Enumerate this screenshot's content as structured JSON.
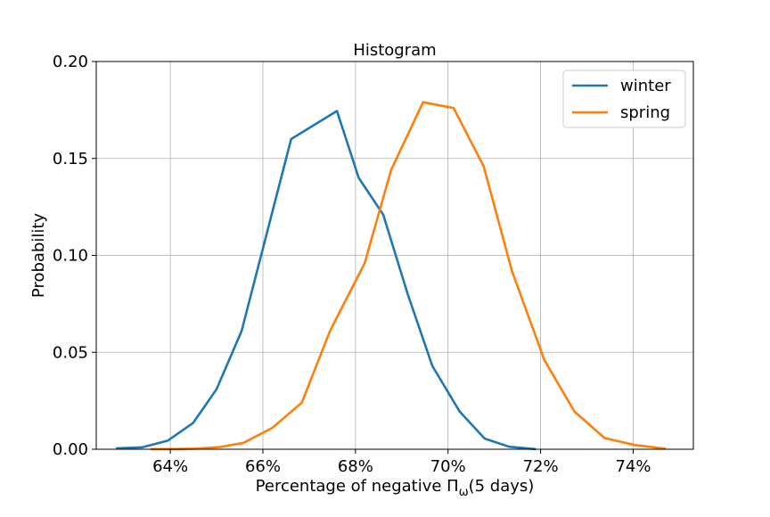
{
  "chart_data": {
    "type": "line",
    "title": "Histogram",
    "xlabel_prefix": "Percentage of negative Π",
    "xlabel_sub": "ω",
    "xlabel_suffix": "(5 days)",
    "ylabel": "Probability",
    "xlim": [
      62.4,
      75.3
    ],
    "ylim": [
      0,
      0.2
    ],
    "x_ticks": [
      64,
      66,
      68,
      70,
      72,
      74
    ],
    "x_tick_labels": [
      "64%",
      "66%",
      "68%",
      "70%",
      "72%",
      "74%"
    ],
    "y_ticks": [
      0,
      0.05,
      0.1,
      0.15,
      0.2
    ],
    "y_tick_labels": [
      "0.00",
      "0.05",
      "0.10",
      "0.15",
      "0.20"
    ],
    "grid": true,
    "legend_position": "top-right",
    "series": [
      {
        "name": "winter",
        "color": "#1f77b4",
        "x": [
          62.85,
          63.4,
          63.95,
          64.49,
          65.0,
          65.54,
          66.07,
          66.61,
          67.6,
          68.07,
          68.6,
          69.13,
          69.66,
          70.25,
          70.79,
          71.32,
          71.87
        ],
        "y": [
          0.0005,
          0.001,
          0.0045,
          0.0135,
          0.031,
          0.061,
          0.11,
          0.16,
          0.1745,
          0.14,
          0.121,
          0.08,
          0.043,
          0.0195,
          0.0055,
          0.0013,
          0.0001
        ]
      },
      {
        "name": "spring",
        "color": "#ff7f0e",
        "x": [
          63.6,
          64.05,
          64.56,
          65.06,
          65.58,
          66.2,
          66.84,
          67.45,
          68.2,
          68.77,
          69.46,
          70.12,
          70.77,
          71.38,
          72.08,
          72.73,
          73.38,
          74.03,
          74.68
        ],
        "y": [
          0.0001,
          0.0001,
          0.0003,
          0.0011,
          0.0033,
          0.011,
          0.024,
          0.061,
          0.096,
          0.144,
          0.179,
          0.176,
          0.146,
          0.092,
          0.046,
          0.0195,
          0.0058,
          0.0022,
          0.0003
        ]
      }
    ]
  }
}
